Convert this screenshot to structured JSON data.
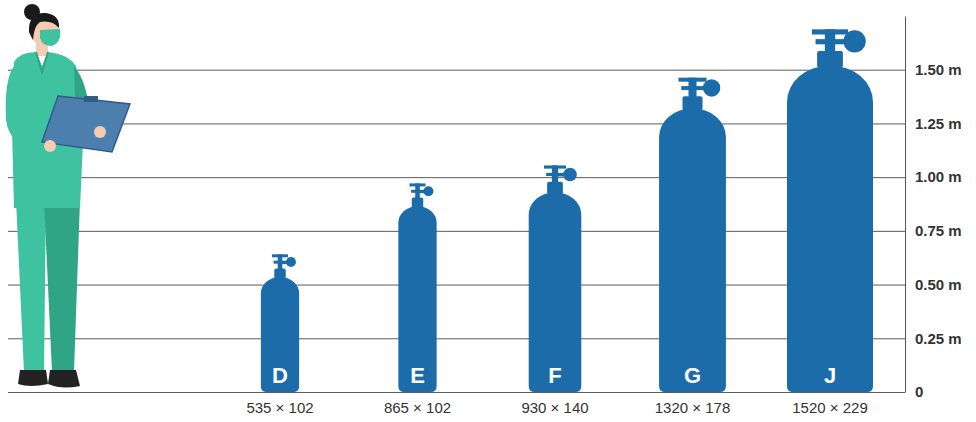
{
  "chart_data": {
    "type": "bar",
    "categories": [
      "D",
      "E",
      "F",
      "G",
      "J"
    ],
    "values": [
      0.535,
      0.865,
      0.93,
      1.32,
      1.52
    ],
    "diameters": [
      102,
      102,
      140,
      178,
      229
    ],
    "annotations": [
      "535 × 102",
      "865 × 102",
      "930 × 140",
      "1320 × 178",
      "1520 × 229"
    ],
    "color": "#1b6ca8",
    "ylim": [
      0,
      1.75
    ],
    "yticks": [
      0,
      {
        "value": 0.25,
        "label": "0.25 m"
      },
      {
        "value": 0.5,
        "label": "0.50 m"
      },
      {
        "value": 0.75,
        "label": "0.75 m"
      },
      {
        "value": 1,
        "label": "1.00 m"
      },
      {
        "value": 1.25,
        "label": "1.25 m"
      },
      {
        "value": 1.5,
        "label": "1.50 m"
      }
    ],
    "grid": true
  }
}
